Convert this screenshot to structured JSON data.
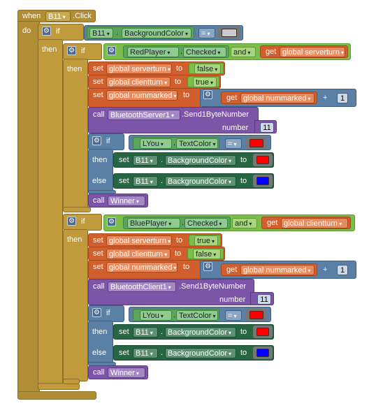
{
  "event": {
    "when": "when",
    "component": "B11",
    "event": "Click",
    "do": "do"
  },
  "outer_if": {
    "if": "if",
    "then": "then",
    "cond": {
      "component": "B11",
      "property": "BackgroundColor",
      "op": "=",
      "color": "#cccccc"
    }
  },
  "labels": {
    "if": "if",
    "then": "then",
    "else": "else",
    "set": "set",
    "to": "to",
    "get": "get",
    "call": "call",
    "and": "and",
    "plus": "+",
    "number": "number",
    "equals": "="
  },
  "branch1": {
    "cond": {
      "component": "RedPlayer",
      "property": "Checked",
      "var": "global serverturn"
    },
    "set1": {
      "var": "global serverturn",
      "value": "false"
    },
    "set2": {
      "var": "global clientturn",
      "value": "true"
    },
    "set3": {
      "var": "global nummarked",
      "get": "global nummarked",
      "add": "1"
    },
    "call1": {
      "component": "BluetoothServer1",
      "method": ".Send1ByteNumber",
      "number": "11"
    },
    "inner_if": {
      "component": "LYou",
      "property": "TextColor",
      "color": "#ff0000"
    },
    "then_set": {
      "component": "B11",
      "property": "BackgroundColor",
      "color": "#ff0000"
    },
    "else_set": {
      "component": "B11",
      "property": "BackgroundColor",
      "color": "#0000ff"
    },
    "call2": {
      "proc": "Winner"
    }
  },
  "branch2": {
    "cond": {
      "component": "BluePlayer",
      "property": "Checked",
      "var": "global clientturn"
    },
    "set1": {
      "var": "global serverturn",
      "value": "true"
    },
    "set2": {
      "var": "global clientturn",
      "value": "false"
    },
    "set3": {
      "var": "global nummarked",
      "get": "global nummarked",
      "add": "1"
    },
    "call1": {
      "component": "BluetoothClient1",
      "method": ".Send1ByteNumber",
      "number": "11"
    },
    "inner_if": {
      "component": "LYou",
      "property": "TextColor",
      "color": "#ff0000"
    },
    "then_set": {
      "component": "B11",
      "property": "BackgroundColor",
      "color": "#ff0000"
    },
    "else_set": {
      "component": "B11",
      "property": "BackgroundColor",
      "color": "#0000ff"
    },
    "call2": {
      "proc": "Winner"
    }
  },
  "icons": {
    "gear": "gear-icon",
    "dropdown": "dropdown-arrow-icon"
  }
}
